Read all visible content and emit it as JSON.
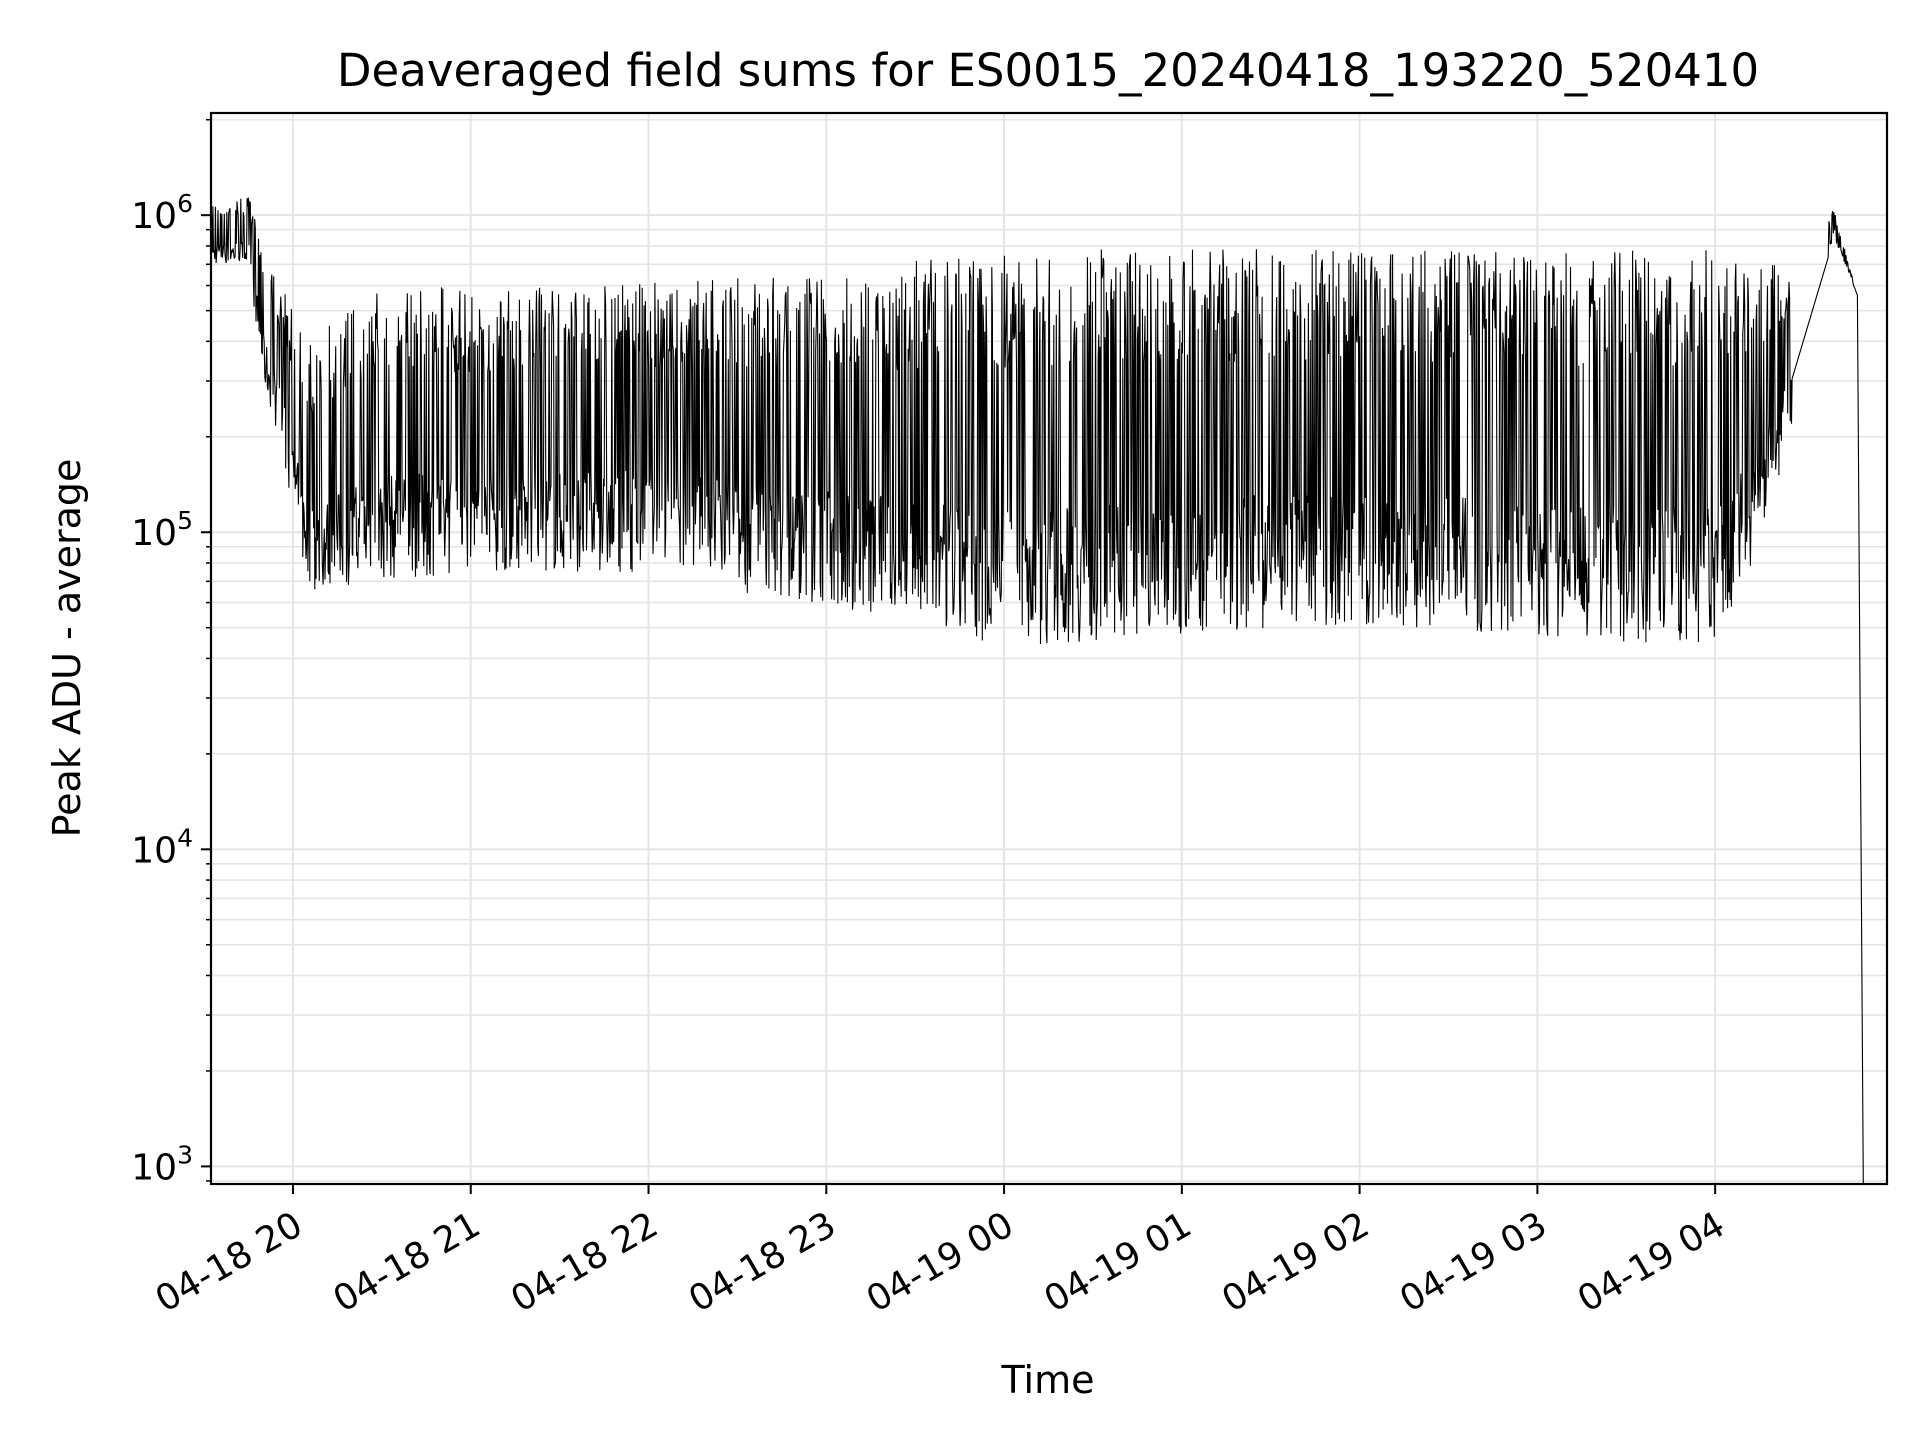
{
  "chart_data": {
    "type": "line",
    "title": "Deaveraged field sums for ES0015_20240418_193220_520410",
    "xlabel": "Time",
    "ylabel": "Peak ADU - average",
    "x_scale": "time",
    "y_scale": "log",
    "xlim": [
      "2024-04-18T19:32:20",
      "2024-04-19T04:58:00"
    ],
    "ylim": [
      880,
      2100000
    ],
    "grid": true,
    "line_color": "#000000",
    "grid_color": "#e5e5e5",
    "x_ticks": [
      {
        "t": "2024-04-18T20:00:00",
        "label": "04-18 20"
      },
      {
        "t": "2024-04-18T21:00:00",
        "label": "04-18 21"
      },
      {
        "t": "2024-04-18T22:00:00",
        "label": "04-18 22"
      },
      {
        "t": "2024-04-18T23:00:00",
        "label": "04-18 23"
      },
      {
        "t": "2024-04-19T00:00:00",
        "label": "04-19 00"
      },
      {
        "t": "2024-04-19T01:00:00",
        "label": "04-19 01"
      },
      {
        "t": "2024-04-19T02:00:00",
        "label": "04-19 02"
      },
      {
        "t": "2024-04-19T03:00:00",
        "label": "04-19 03"
      },
      {
        "t": "2024-04-19T04:00:00",
        "label": "04-19 04"
      }
    ],
    "y_ticks": [
      {
        "value": 1000,
        "base": "10",
        "exp": "3"
      },
      {
        "value": 10000,
        "base": "10",
        "exp": "4"
      },
      {
        "value": 100000,
        "base": "10",
        "exp": "5"
      },
      {
        "value": 1000000,
        "base": "10",
        "exp": "6"
      }
    ],
    "envelope": {
      "x": [
        "2024-04-18T19:32:20",
        "2024-04-18T19:45:00",
        "2024-04-18T19:50:00",
        "2024-04-18T19:55:00",
        "2024-04-18T20:05:00",
        "2024-04-18T20:30:00",
        "2024-04-18T21:00:00",
        "2024-04-18T21:30:00",
        "2024-04-18T22:00:00",
        "2024-04-18T22:30:00",
        "2024-04-18T23:00:00",
        "2024-04-18T23:30:00",
        "2024-04-19T00:00:00",
        "2024-04-19T00:30:00",
        "2024-04-19T01:00:00",
        "2024-04-19T01:30:00",
        "2024-04-19T02:00:00",
        "2024-04-19T02:30:00",
        "2024-04-19T03:00:00",
        "2024-04-19T03:30:00",
        "2024-04-19T04:00:00",
        "2024-04-19T04:15:00",
        "2024-04-19T04:25:00",
        "2024-04-19T04:40:00",
        "2024-04-19T04:48:00"
      ],
      "upper": [
        1100000,
        1150000,
        800000,
        650000,
        400000,
        650000,
        580000,
        600000,
        620000,
        650000,
        680000,
        720000,
        750000,
        780000,
        800000,
        790000,
        780000,
        770000,
        760000,
        770000,
        800000,
        700000,
        700000,
        1050000,
        560000
      ],
      "lower": [
        700000,
        700000,
        300000,
        200000,
        65000,
        70000,
        75000,
        75000,
        75000,
        65000,
        58000,
        50000,
        44000,
        45000,
        48000,
        50000,
        50000,
        50000,
        45000,
        45000,
        45000,
        90000,
        200000,
        850000,
        560000
      ]
    },
    "final_drop": {
      "t": "2024-04-19T04:50:00",
      "value": 880
    }
  }
}
